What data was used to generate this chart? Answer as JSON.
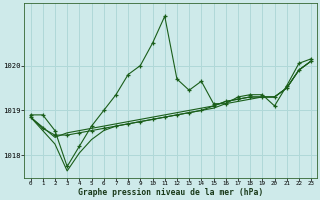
{
  "title": "Graphe pression niveau de la mer (hPa)",
  "bg_color": "#ceeaea",
  "plot_bg_color": "#ceeaea",
  "line_color": "#1a5e1a",
  "grid_color": "#b0d8d8",
  "xlim": [
    -0.5,
    23.5
  ],
  "ylim": [
    1017.5,
    1021.4
  ],
  "yticks": [
    1018,
    1019,
    1020
  ],
  "xticks": [
    0,
    1,
    2,
    3,
    4,
    5,
    6,
    7,
    8,
    9,
    10,
    11,
    12,
    13,
    14,
    15,
    16,
    17,
    18,
    19,
    20,
    21,
    22,
    23
  ],
  "series": [
    {
      "x": [
        0,
        1,
        2,
        3,
        4,
        5,
        6,
        7,
        8,
        9,
        10,
        11,
        12,
        13,
        14,
        15,
        16,
        17,
        18,
        19,
        20,
        21,
        22,
        23
      ],
      "y": [
        1018.9,
        1018.9,
        1018.55,
        1017.75,
        1018.2,
        1018.65,
        1019.0,
        1019.35,
        1019.8,
        1020.0,
        1020.5,
        1021.1,
        1019.7,
        1019.45,
        1019.65,
        1019.15,
        1019.15,
        1019.3,
        1019.35,
        1019.35,
        1019.1,
        1019.55,
        1020.05,
        1020.15
      ],
      "marker": "+"
    },
    {
      "x": [
        0,
        1,
        2,
        3,
        4,
        5,
        6,
        7,
        8,
        9,
        10,
        11,
        12,
        13,
        14,
        15,
        16,
        17,
        18,
        19,
        20,
        21,
        22,
        23
      ],
      "y": [
        1018.85,
        1018.6,
        1018.45,
        1018.45,
        1018.5,
        1018.55,
        1018.6,
        1018.65,
        1018.7,
        1018.75,
        1018.8,
        1018.85,
        1018.9,
        1018.95,
        1019.0,
        1019.1,
        1019.2,
        1019.25,
        1019.3,
        1019.3,
        1019.3,
        1019.5,
        1019.9,
        1020.1
      ],
      "marker": "+"
    },
    {
      "x": [
        0,
        2,
        3,
        4,
        5,
        6,
        7,
        8,
        9,
        10,
        11,
        12,
        13,
        14,
        15,
        16,
        17,
        18,
        19,
        20,
        21,
        22,
        23
      ],
      "y": [
        1018.85,
        1018.4,
        1018.5,
        1018.55,
        1018.6,
        1018.65,
        1018.7,
        1018.75,
        1018.8,
        1018.85,
        1018.9,
        1018.95,
        1019.0,
        1019.05,
        1019.1,
        1019.2,
        1019.25,
        1019.3,
        1019.3,
        1019.3,
        1019.5,
        1019.9,
        1020.1
      ],
      "marker": "None"
    },
    {
      "x": [
        0,
        2,
        3,
        4,
        5,
        6,
        7,
        8,
        9,
        10,
        11,
        12,
        13,
        14,
        15,
        16,
        17,
        18,
        19,
        20,
        21,
        22,
        23
      ],
      "y": [
        1018.85,
        1018.25,
        1017.65,
        1018.05,
        1018.35,
        1018.55,
        1018.65,
        1018.7,
        1018.75,
        1018.8,
        1018.85,
        1018.9,
        1018.95,
        1019.0,
        1019.05,
        1019.15,
        1019.2,
        1019.25,
        1019.3,
        1019.3,
        1019.5,
        1019.9,
        1020.1
      ],
      "marker": "None"
    }
  ]
}
